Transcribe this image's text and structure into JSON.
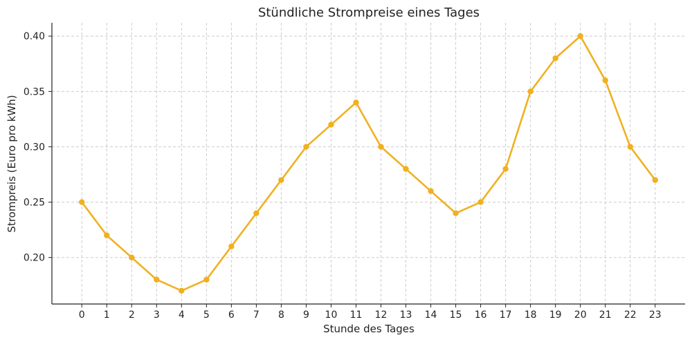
{
  "chart_data": {
    "type": "line",
    "title": "Stündliche Strompreise eines Tages",
    "xlabel": "Stunde des Tages",
    "ylabel": "Strompreis (Euro pro kWh)",
    "x": [
      0,
      1,
      2,
      3,
      4,
      5,
      6,
      7,
      8,
      9,
      10,
      11,
      12,
      13,
      14,
      15,
      16,
      17,
      18,
      19,
      20,
      21,
      22,
      23
    ],
    "x_tick_labels": [
      "0",
      "1",
      "2",
      "3",
      "4",
      "5",
      "6",
      "7",
      "8",
      "9",
      "10",
      "11",
      "12",
      "13",
      "14",
      "15",
      "16",
      "17",
      "18",
      "19",
      "20",
      "21",
      "22",
      "23"
    ],
    "series": [
      {
        "values": [
          0.25,
          0.22,
          0.2,
          0.18,
          0.17,
          0.18,
          0.21,
          0.24,
          0.27,
          0.3,
          0.32,
          0.34,
          0.3,
          0.28,
          0.26,
          0.24,
          0.25,
          0.28,
          0.35,
          0.38,
          0.4,
          0.36,
          0.3,
          0.27
        ],
        "color": "#f0b020"
      }
    ],
    "xlim": [
      -1.2,
      24.2
    ],
    "ylim": [
      0.158,
      0.412
    ],
    "y_ticks": [
      0.2,
      0.25,
      0.3,
      0.35,
      0.4
    ],
    "y_tick_labels": [
      "0.20",
      "0.25",
      "0.30",
      "0.35",
      "0.40"
    ],
    "grid": true,
    "legend": "none"
  }
}
